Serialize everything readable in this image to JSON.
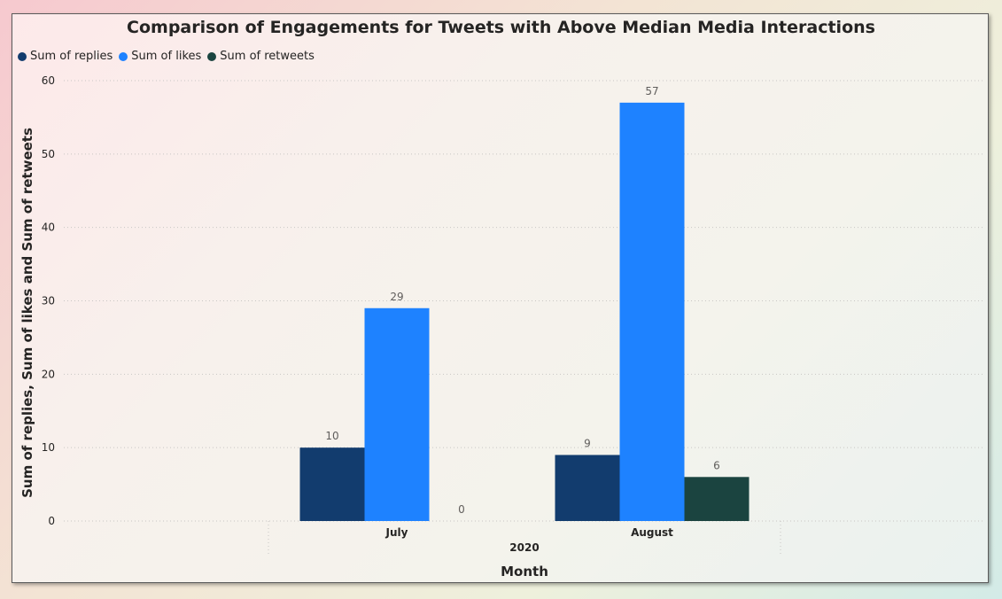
{
  "chart_data": {
    "type": "bar",
    "title": "Comparison of Engagements for Tweets with Above Median Media Interactions",
    "xlabel": "Month",
    "ylabel": "Sum of replies, Sum of likes and Sum of retweets",
    "x_group_label": "2020",
    "categories": [
      "July",
      "August"
    ],
    "series": [
      {
        "name": "Sum of replies",
        "color": "#123c6e",
        "values": [
          10,
          9
        ]
      },
      {
        "name": "Sum of likes",
        "color": "#1e82ff",
        "values": [
          29,
          57
        ]
      },
      {
        "name": "Sum of retweets",
        "color": "#1b4440",
        "values": [
          0,
          6
        ]
      }
    ],
    "ylim": [
      0,
      60
    ],
    "yticks": [
      0,
      10,
      20,
      30,
      40,
      50,
      60
    ],
    "grid": true,
    "legend_position": "top-left",
    "data_labels": true
  }
}
